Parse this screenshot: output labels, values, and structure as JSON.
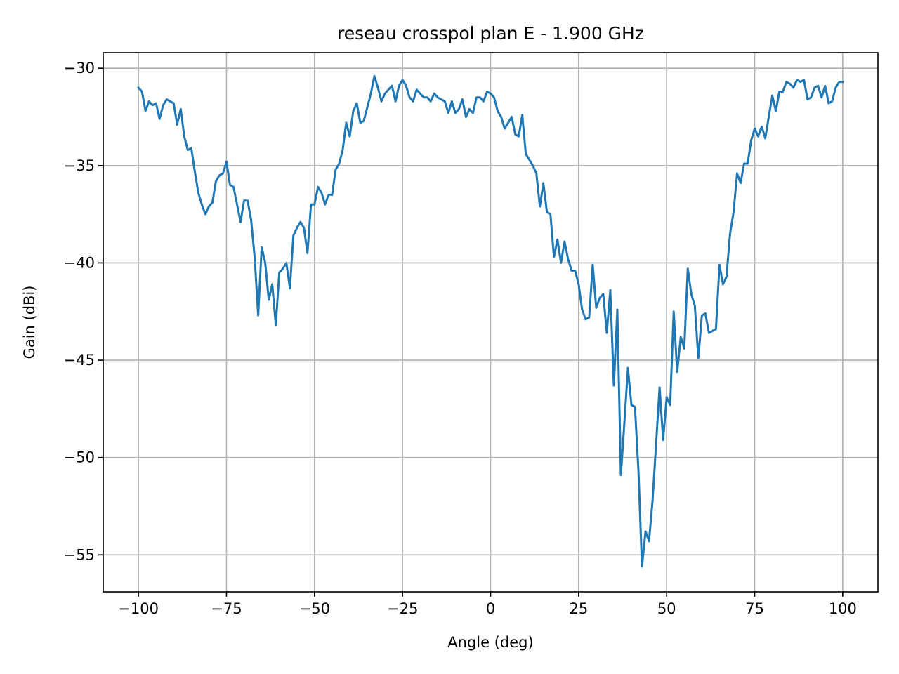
{
  "chart_data": {
    "type": "line",
    "title": "reseau crosspol plan E - 1.900 GHz",
    "xlabel": "Angle (deg)",
    "ylabel": "Gain (dBi)",
    "xlim": [
      -110,
      110
    ],
    "ylim": [
      -56.9,
      -29.2
    ],
    "xticks": [
      -100,
      -75,
      -50,
      -25,
      0,
      25,
      50,
      75,
      100
    ],
    "yticks": [
      -55,
      -50,
      -45,
      -40,
      -35,
      -30
    ],
    "xtick_labels": [
      "−100",
      "−75",
      "−50",
      "−25",
      "0",
      "25",
      "50",
      "75",
      "100"
    ],
    "ytick_labels": [
      "−55",
      "−50",
      "−45",
      "−40",
      "−35",
      "−30"
    ],
    "grid": true,
    "line_color": "#1f77b4",
    "series": [
      {
        "x": [
          -100,
          -99,
          -98,
          -97,
          -96,
          -95,
          -94,
          -93,
          -92,
          -91,
          -90,
          -89,
          -88,
          -87,
          -86,
          -85,
          -84,
          -83,
          -82,
          -81,
          -80,
          -79,
          -78,
          -77,
          -76,
          -75,
          -74,
          -73,
          -72,
          -71,
          -70,
          -69,
          -68,
          -67,
          -66,
          -65,
          -64,
          -63,
          -62,
          -61,
          -60,
          -59,
          -58,
          -57,
          -56,
          -55,
          -54,
          -53,
          -52,
          -51,
          -50,
          -49,
          -48,
          -47,
          -46,
          -45,
          -44,
          -43,
          -42,
          -41,
          -40,
          -39,
          -38,
          -37,
          -36,
          -35,
          -34,
          -33,
          -32,
          -31,
          -30,
          -29,
          -28,
          -27,
          -26,
          -25,
          -24,
          -23,
          -22,
          -21,
          -20,
          -19,
          -18,
          -17,
          -16,
          -15,
          -14,
          -13,
          -12,
          -11,
          -10,
          -9,
          -8,
          -7,
          -6,
          -5,
          -4,
          -3,
          -2,
          -1,
          0,
          1,
          2,
          3,
          4,
          5,
          6,
          7,
          8,
          9,
          10,
          11,
          12,
          13,
          14,
          15,
          16,
          17,
          18,
          19,
          20,
          21,
          22,
          23,
          24,
          25,
          26,
          27,
          28,
          29,
          30,
          31,
          32,
          33,
          34,
          35,
          36,
          37,
          38,
          39,
          40,
          41,
          42,
          43,
          44,
          45,
          46,
          47,
          48,
          49,
          50,
          51,
          52,
          53,
          54,
          55,
          56,
          57,
          58,
          59,
          60,
          61,
          62,
          63,
          64,
          65,
          66,
          67,
          68,
          69,
          70,
          71,
          72,
          73,
          74,
          75,
          76,
          77,
          78,
          79,
          80,
          81,
          82,
          83,
          84,
          85,
          86,
          87,
          88,
          89,
          90,
          91,
          92,
          93,
          94,
          95,
          96,
          97,
          98,
          99,
          100
        ],
        "y": [
          -31.0,
          -31.2,
          -32.2,
          -31.7,
          -31.9,
          -31.8,
          -32.6,
          -31.9,
          -31.6,
          -31.7,
          -31.8,
          -32.9,
          -32.1,
          -33.5,
          -34.2,
          -34.1,
          -35.3,
          -36.4,
          -37.0,
          -37.5,
          -37.1,
          -36.9,
          -35.8,
          -35.5,
          -35.4,
          -34.8,
          -36.0,
          -36.1,
          -37.0,
          -37.9,
          -36.8,
          -36.8,
          -37.8,
          -39.7,
          -42.7,
          -39.2,
          -40.0,
          -41.9,
          -41.1,
          -43.2,
          -40.5,
          -40.3,
          -40.0,
          -41.3,
          -38.6,
          -38.2,
          -37.9,
          -38.2,
          -39.5,
          -37.0,
          -37.0,
          -36.1,
          -36.4,
          -37.0,
          -36.5,
          -36.5,
          -35.2,
          -34.9,
          -34.2,
          -32.8,
          -33.5,
          -32.2,
          -31.8,
          -32.8,
          -32.7,
          -32.0,
          -31.3,
          -30.4,
          -31.0,
          -31.7,
          -31.3,
          -31.1,
          -30.9,
          -31.7,
          -30.9,
          -30.6,
          -30.9,
          -31.5,
          -31.7,
          -31.1,
          -31.3,
          -31.5,
          -31.5,
          -31.7,
          -31.3,
          -31.5,
          -31.6,
          -31.7,
          -32.3,
          -31.7,
          -32.3,
          -32.1,
          -31.6,
          -32.5,
          -32.1,
          -32.3,
          -31.5,
          -31.5,
          -31.7,
          -31.2,
          -31.3,
          -31.5,
          -32.2,
          -32.5,
          -33.1,
          -32.8,
          -32.5,
          -33.4,
          -33.5,
          -32.4,
          -34.4,
          -34.7,
          -35.0,
          -35.4,
          -37.1,
          -35.9,
          -37.4,
          -37.5,
          -39.7,
          -38.8,
          -40.0,
          -38.9,
          -39.8,
          -40.4,
          -40.4,
          -41.1,
          -42.4,
          -42.9,
          -42.8,
          -40.1,
          -42.3,
          -41.8,
          -41.6,
          -43.6,
          -41.4,
          -46.3,
          -42.4,
          -50.9,
          -48.2,
          -45.4,
          -47.3,
          -47.4,
          -50.7,
          -55.6,
          -53.8,
          -54.3,
          -52.2,
          -49.3,
          -46.4,
          -49.1,
          -46.9,
          -47.3,
          -42.5,
          -45.6,
          -43.8,
          -44.4,
          -40.3,
          -41.6,
          -42.2,
          -44.9,
          -42.7,
          -42.6,
          -43.6,
          -43.5,
          -43.4,
          -40.1,
          -41.1,
          -40.7,
          -38.5,
          -37.4,
          -35.4,
          -35.9,
          -34.9,
          -34.9,
          -33.7,
          -33.1,
          -33.5,
          -33.0,
          -33.6,
          -32.5,
          -31.4,
          -32.2,
          -31.2,
          -31.2,
          -30.7,
          -30.8,
          -31.0,
          -30.6,
          -30.7,
          -30.6,
          -31.6,
          -31.5,
          -31.0,
          -30.9,
          -31.5,
          -30.9,
          -31.8,
          -31.7,
          -31.0,
          -30.7,
          -30.7
        ]
      }
    ]
  }
}
